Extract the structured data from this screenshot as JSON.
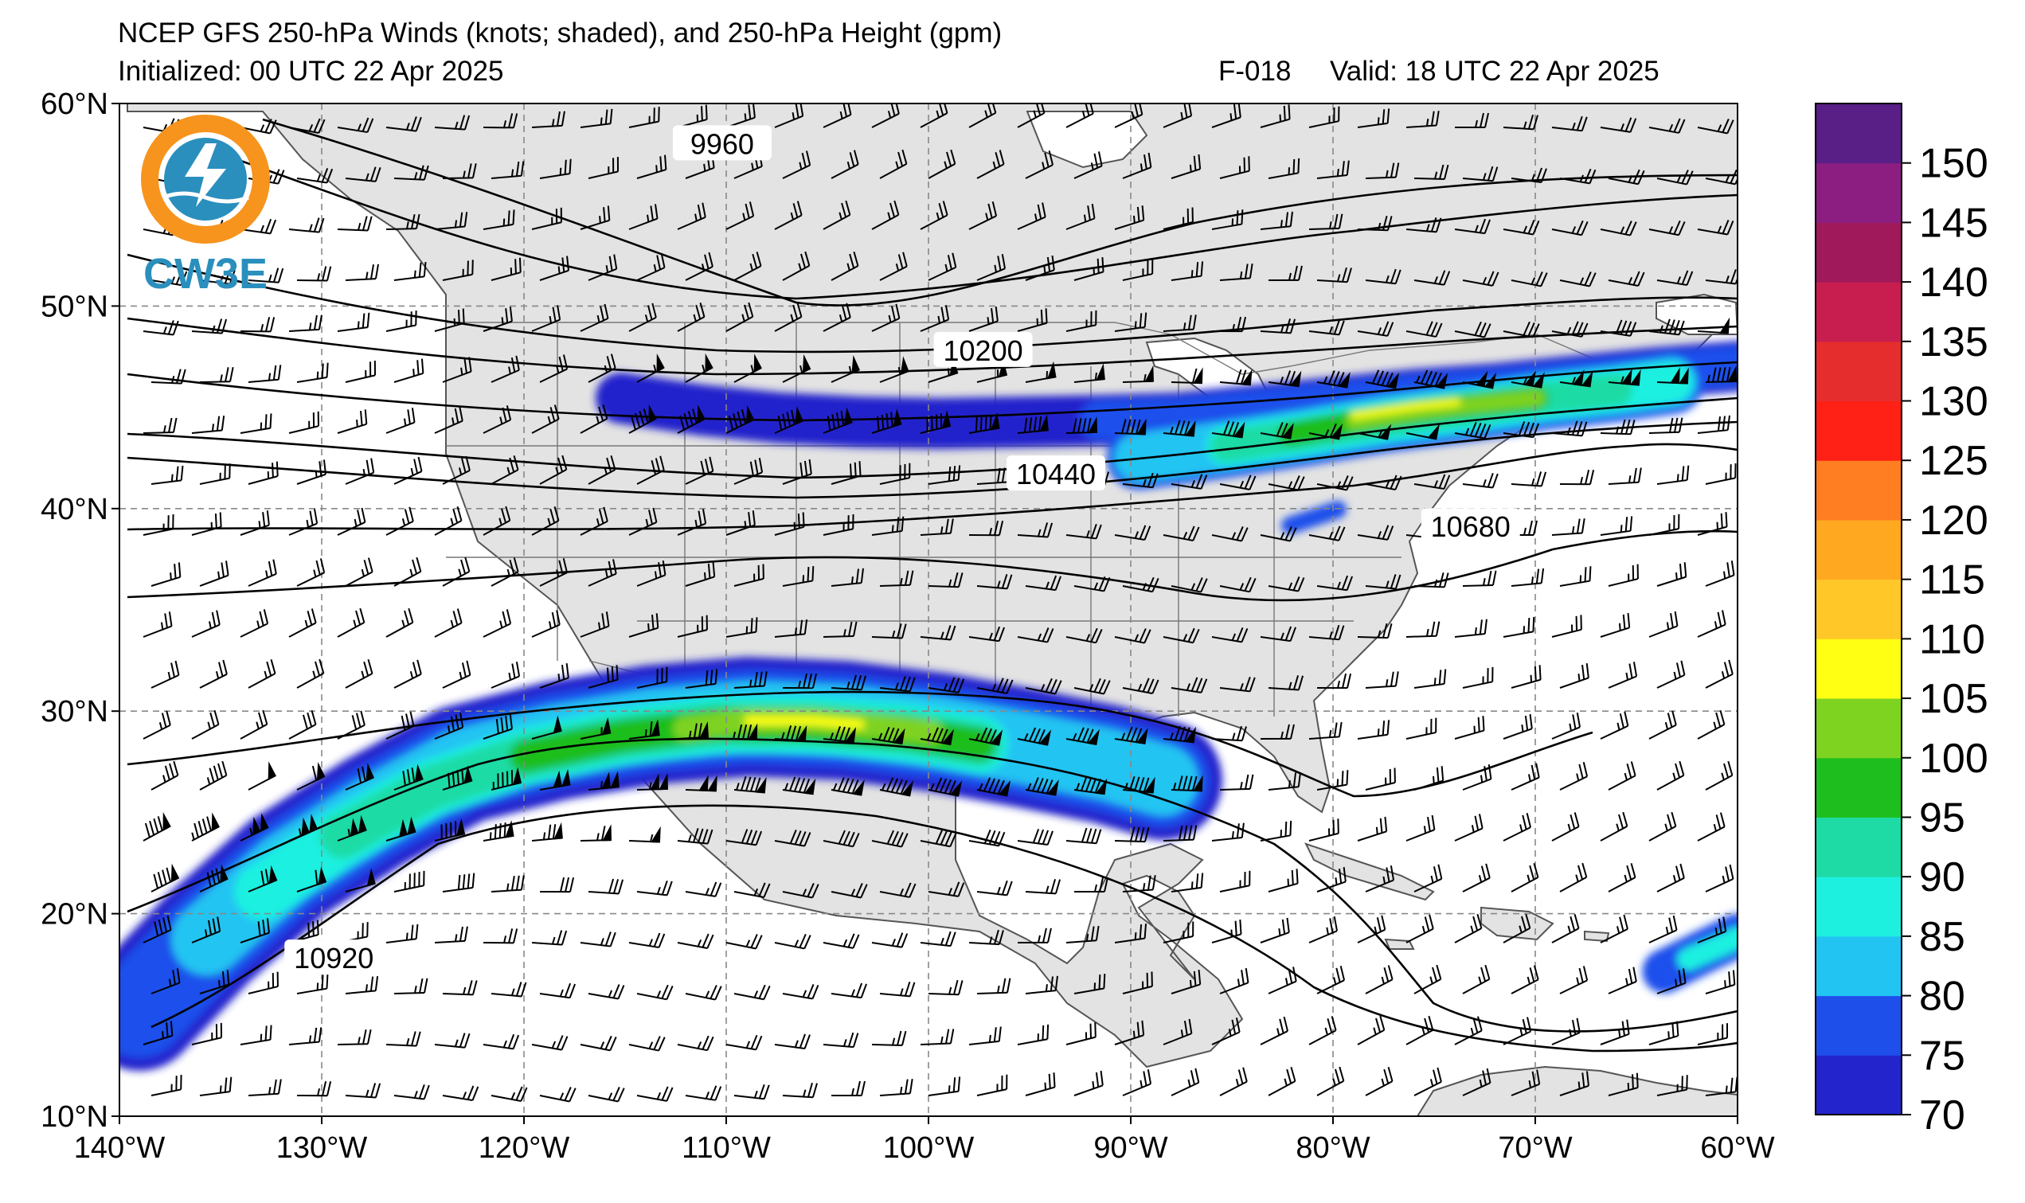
{
  "header": {
    "title": "NCEP GFS 250-hPa Winds (knots; shaded), and 250-hPa Height (gpm)",
    "initialized": "Initialized: 00 UTC 22 Apr 2025",
    "forecast_hour": "F-018",
    "valid": "Valid: 18 UTC 22 Apr 2025"
  },
  "logo": {
    "text": "CW3E",
    "colors": {
      "ring_orange": "#F7941D",
      "blue": "#2A8FBD"
    }
  },
  "map": {
    "extent": {
      "lon_min": -140,
      "lon_max": -60,
      "lat_min": 10,
      "lat_max": 60
    },
    "lat_labels": [
      "10°N",
      "20°N",
      "30°N",
      "40°N",
      "50°N",
      "60°N"
    ],
    "lon_labels": [
      "140°W",
      "130°W",
      "120°W",
      "110°W",
      "100°W",
      "90°W",
      "80°W",
      "70°W",
      "60°W"
    ],
    "land_color": "#e3e3e3",
    "ocean_color": "#ffffff",
    "contour_labels": [
      {
        "text": "9960",
        "lon": -110.2,
        "lat": 57.9
      },
      {
        "text": "10200",
        "lon": -97.3,
        "lat": 47.7
      },
      {
        "text": "10440",
        "lon": -93.7,
        "lat": 41.6
      },
      {
        "text": "10680",
        "lon": -73.2,
        "lat": 39.0
      },
      {
        "text": "10920",
        "lon": -129.4,
        "lat": 17.7
      }
    ]
  },
  "colorbar": {
    "ticks": [
      "70",
      "75",
      "80",
      "85",
      "90",
      "95",
      "100",
      "105",
      "110",
      "115",
      "120",
      "125",
      "130",
      "135",
      "140",
      "145",
      "150"
    ],
    "levels": [
      70,
      75,
      80,
      85,
      90,
      95,
      100,
      105,
      110,
      115,
      120,
      125,
      130,
      135,
      140,
      145,
      150,
      155
    ],
    "colors": [
      "#2424CC",
      "#1F4FEB",
      "#22C4F2",
      "#1EF0E0",
      "#1EDBA5",
      "#1EBE1E",
      "#7ED321",
      "#FFFF14",
      "#FFC828",
      "#FFA820",
      "#FF7E21",
      "#FF2016",
      "#E62D2D",
      "#C81E4F",
      "#A0195A",
      "#8C1E82",
      "#5A1E87"
    ]
  }
}
